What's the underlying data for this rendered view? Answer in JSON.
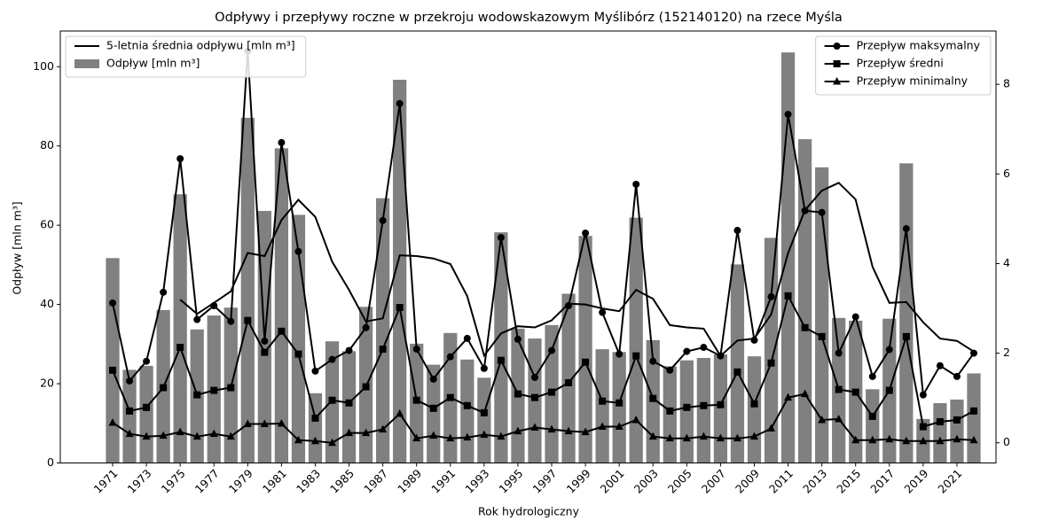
{
  "chart_data": {
    "type": "bar",
    "title": "Odpływy i przepływy roczne w przekroju wodowskazowym Myślibórz (152140120) na rzece Myśla",
    "x_label": "Rok hydrologiczny",
    "y_label": "Odpływ [mln m³]",
    "categories": [
      "1971",
      null,
      "1973",
      null,
      "1975",
      null,
      "1977",
      null,
      "1979",
      null,
      "1981",
      null,
      "1983",
      null,
      "1985",
      null,
      "1987",
      null,
      "1989",
      null,
      "1991",
      null,
      "1993",
      null,
      "1995",
      null,
      "1997",
      null,
      "1999",
      null,
      "2001",
      null,
      "2003",
      null,
      "2005",
      null,
      "2007",
      null,
      "2009",
      null,
      "2011",
      null,
      "2013",
      null,
      "2015",
      null,
      "2017",
      null,
      "2019",
      null,
      "2021",
      null
    ],
    "ylim": [
      0,
      109
    ],
    "yticks": [
      0,
      20,
      40,
      60,
      80,
      100
    ],
    "y2lim": [
      -0.45,
      9.19
    ],
    "y2ticks": [
      0,
      2,
      4,
      6,
      8
    ],
    "grid": false,
    "series": [
      {
        "name": "Odpływ [mln m³]",
        "type": "bar",
        "color": "#808080",
        "legend": "upper left",
        "values": [
          51.7,
          23.5,
          24.5,
          38.6,
          67.8,
          33.7,
          37.2,
          39.2,
          87.1,
          63.6,
          79.4,
          62.6,
          17.6,
          30.7,
          28.2,
          39.4,
          66.8,
          96.7,
          30.1,
          24.8,
          32.8,
          26.1,
          21.5,
          58.2,
          33.9,
          31.4,
          34.8,
          42.7,
          57.3,
          28.7,
          28.0,
          61.9,
          31.0,
          24.4,
          25.9,
          26.5,
          27.4,
          50.1,
          26.9,
          56.8,
          103.6,
          81.7,
          74.6,
          36.6,
          35.9,
          18.6,
          36.4,
          75.6,
          11.1,
          15.1,
          16.0,
          22.6
        ]
      },
      {
        "name": "5-letnia średnia odpływu [mln m³]",
        "type": "line",
        "color": "#000000",
        "legend": "upper left",
        "values": [
          null,
          null,
          null,
          null,
          41.2,
          37.6,
          40.4,
          43.3,
          53.0,
          52.2,
          61.3,
          66.4,
          62.1,
          50.8,
          43.7,
          35.7,
          36.5,
          52.4,
          52.2,
          51.6,
          50.2,
          42.1,
          27.1,
          32.7,
          34.5,
          34.2,
          36.0,
          40.2,
          40.0,
          39.0,
          38.3,
          43.7,
          41.4,
          34.8,
          34.2,
          33.9,
          27.0,
          30.9,
          31.4,
          37.5,
          53.0,
          63.8,
          68.7,
          70.7,
          66.5,
          49.5,
          40.4,
          40.6,
          35.5,
          31.4,
          30.8,
          28.1
        ]
      },
      {
        "name": "Przepływ maksymalny",
        "type": "line",
        "marker": "circle",
        "axis": "y2",
        "color": "#000000",
        "legend": "upper right",
        "values": [
          3.12,
          1.38,
          1.82,
          3.36,
          6.34,
          2.75,
          3.06,
          2.71,
          8.74,
          2.27,
          6.7,
          4.27,
          1.6,
          1.86,
          2.06,
          2.57,
          4.96,
          7.57,
          2.09,
          1.42,
          1.92,
          2.33,
          1.66,
          4.58,
          2.31,
          1.46,
          2.06,
          3.06,
          4.68,
          2.91,
          1.98,
          5.77,
          1.82,
          1.62,
          2.04,
          2.13,
          1.94,
          4.74,
          2.29,
          3.26,
          7.33,
          5.18,
          5.14,
          2.0,
          2.81,
          1.48,
          2.08,
          4.78,
          1.07,
          1.72,
          1.48,
          2.0
        ]
      },
      {
        "name": "Przepływ średni",
        "type": "line",
        "marker": "square",
        "axis": "y2",
        "color": "#000000",
        "legend": "upper right",
        "values": [
          1.62,
          0.71,
          0.79,
          1.23,
          2.13,
          1.07,
          1.17,
          1.23,
          2.73,
          2.02,
          2.49,
          1.98,
          0.55,
          0.95,
          0.89,
          1.25,
          2.09,
          3.02,
          0.95,
          0.77,
          1.01,
          0.83,
          0.67,
          1.84,
          1.09,
          1.01,
          1.13,
          1.34,
          1.8,
          0.93,
          0.89,
          1.94,
          0.99,
          0.71,
          0.79,
          0.83,
          0.85,
          1.58,
          0.87,
          1.78,
          3.28,
          2.57,
          2.37,
          1.19,
          1.13,
          0.59,
          1.17,
          2.37,
          0.36,
          0.47,
          0.51,
          0.71
        ]
      },
      {
        "name": "Przepływ minimalny",
        "type": "line",
        "marker": "triangle",
        "axis": "y2",
        "color": "#000000",
        "legend": "upper right",
        "values": [
          0.45,
          0.2,
          0.14,
          0.16,
          0.24,
          0.14,
          0.2,
          0.14,
          0.42,
          0.42,
          0.43,
          0.06,
          0.04,
          0.0,
          0.22,
          0.22,
          0.3,
          0.65,
          0.1,
          0.16,
          0.1,
          0.12,
          0.18,
          0.14,
          0.26,
          0.34,
          0.3,
          0.26,
          0.24,
          0.36,
          0.36,
          0.51,
          0.14,
          0.1,
          0.1,
          0.14,
          0.1,
          0.1,
          0.14,
          0.32,
          1.01,
          1.09,
          0.51,
          0.53,
          0.06,
          0.06,
          0.08,
          0.04,
          0.04,
          0.04,
          0.08,
          0.06
        ]
      }
    ]
  }
}
